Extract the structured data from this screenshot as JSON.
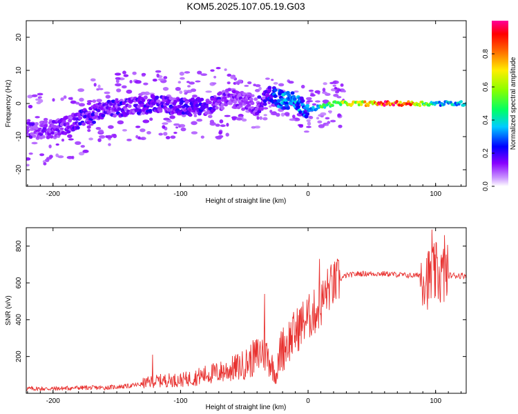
{
  "chart_data": [
    {
      "type": "heatmap",
      "title": "KOM5.2025.107.05.19.G03",
      "xlabel": "Height of straight line (km)",
      "ylabel": "Frequency (Hz)",
      "xlim": [
        -221,
        124
      ],
      "ylim": [
        -25,
        25
      ],
      "xticks": [
        -200,
        -100,
        0,
        100
      ],
      "yticks": [
        -20,
        -10,
        0,
        10,
        20
      ],
      "colorbar": {
        "label": "Normalized spectral amplitude",
        "range": [
          0,
          1
        ],
        "ticks": [
          "0.0",
          "0.2",
          "0.4",
          "0.6",
          "0.8"
        ]
      },
      "ridge": {
        "x": [
          -220,
          -200,
          -180,
          -160,
          -140,
          -120,
          -100,
          -80,
          -60,
          -40,
          -30,
          -20,
          -10,
          0,
          10,
          20,
          40,
          60,
          80,
          100,
          124
        ],
        "frequency": [
          -8,
          -8,
          -5,
          -2,
          -1,
          0,
          -1,
          -1,
          2,
          -1,
          3,
          1,
          1,
          -2,
          -1,
          0,
          0,
          0,
          0,
          0,
          0
        ],
        "amplitude": [
          0.15,
          0.15,
          0.2,
          0.2,
          0.2,
          0.2,
          0.2,
          0.2,
          0.15,
          0.15,
          0.25,
          0.35,
          0.35,
          0.3,
          0.45,
          0.55,
          0.7,
          0.95,
          0.9,
          0.35,
          0.4
        ]
      },
      "grid": false
    },
    {
      "type": "line",
      "title": "",
      "xlabel": "Height of straight line (km)",
      "ylabel": "SNR (v/v)",
      "xlim": [
        -221,
        124
      ],
      "ylim": [
        0,
        900
      ],
      "xticks": [
        -200,
        -100,
        0,
        100
      ],
      "yticks": [
        200,
        400,
        600,
        800
      ],
      "color": "#e8312f",
      "series": [
        {
          "x": [
            -220,
            -200,
            -180,
            -160,
            -140,
            -120,
            -110,
            -100,
            -90,
            -80,
            -70,
            -60,
            -50,
            -40,
            -35,
            -30,
            -25,
            -20,
            -15,
            -10,
            -5,
            0,
            5,
            10,
            15,
            20,
            25,
            30,
            40,
            50,
            60,
            70,
            80,
            85,
            90,
            95,
            100,
            105,
            110,
            115,
            124
          ],
          "values": [
            20,
            20,
            25,
            25,
            35,
            55,
            60,
            60,
            70,
            85,
            95,
            110,
            130,
            170,
            200,
            150,
            80,
            240,
            290,
            330,
            380,
            410,
            440,
            480,
            560,
            590,
            620,
            640,
            650,
            650,
            650,
            645,
            640,
            640,
            650,
            620,
            650,
            640,
            640,
            640,
            640
          ]
        }
      ],
      "peaks": [
        {
          "x": -122,
          "y": 210
        },
        {
          "x": -34,
          "y": 540
        },
        {
          "x": 9,
          "y": 730
        },
        {
          "x": 97,
          "y": 890
        },
        {
          "x": 107,
          "y": 860
        }
      ],
      "grid": false
    }
  ]
}
